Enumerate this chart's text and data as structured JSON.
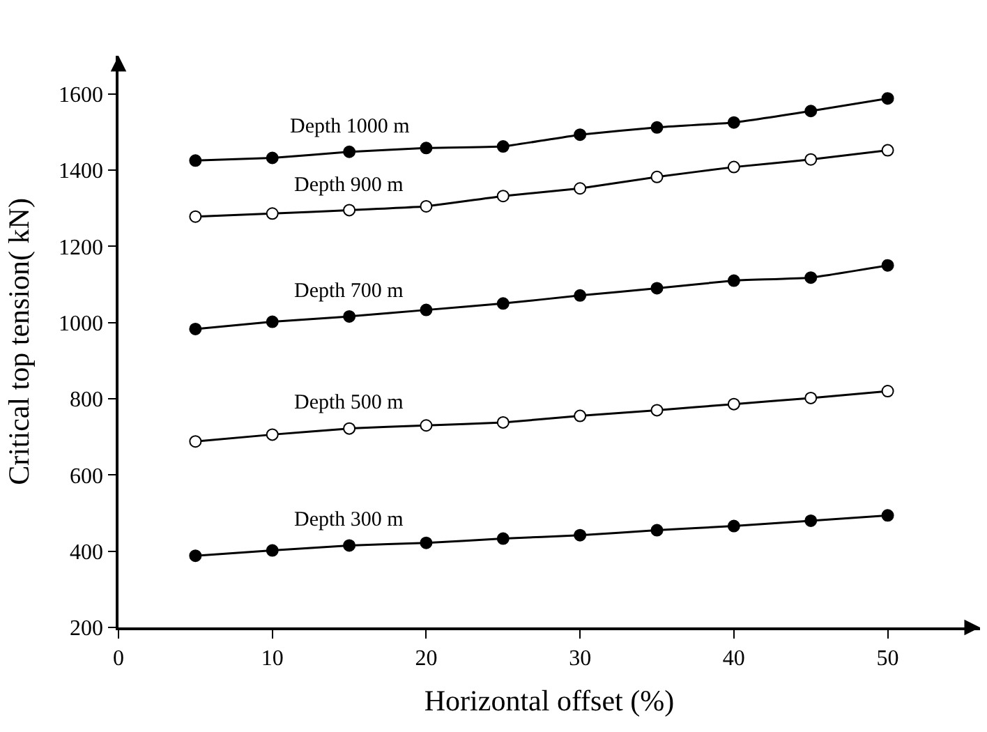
{
  "chart_data": {
    "type": "line",
    "xlabel": "Horizontal offset (%)",
    "ylabel": "Critical top tension( kN)",
    "x": [
      5,
      10,
      15,
      20,
      25,
      30,
      35,
      40,
      45,
      50
    ],
    "series": [
      {
        "name": "Depth 1000 m",
        "color": "#000000",
        "values": [
          1425,
          1432,
          1448,
          1458,
          1462,
          1493,
          1512,
          1525,
          1555,
          1588
        ]
      },
      {
        "name": "Depth 900 m",
        "color": "#ffffff",
        "values": [
          1278,
          1286,
          1295,
          1305,
          1332,
          1352,
          1382,
          1408,
          1428,
          1452
        ]
      },
      {
        "name": "Depth 700 m",
        "color": "#000000",
        "values": [
          983,
          1002,
          1016,
          1033,
          1050,
          1071,
          1090,
          1110,
          1118,
          1150
        ]
      },
      {
        "name": "Depth 500 m",
        "color": "#ffffff",
        "values": [
          688,
          706,
          722,
          730,
          738,
          755,
          770,
          786,
          802,
          820
        ]
      },
      {
        "name": "Depth 300 m",
        "color": "#000000",
        "values": [
          388,
          402,
          415,
          422,
          433,
          442,
          455,
          466,
          480,
          494
        ]
      }
    ],
    "xlim": [
      0,
      56
    ],
    "xticks": [
      0,
      10,
      20,
      30,
      40,
      50
    ],
    "ylim": [
      200,
      1700
    ],
    "yticks": [
      200,
      400,
      600,
      800,
      1000,
      1200,
      1400,
      1600
    ],
    "marker": "circle",
    "line_style": "solid",
    "legend": false
  }
}
